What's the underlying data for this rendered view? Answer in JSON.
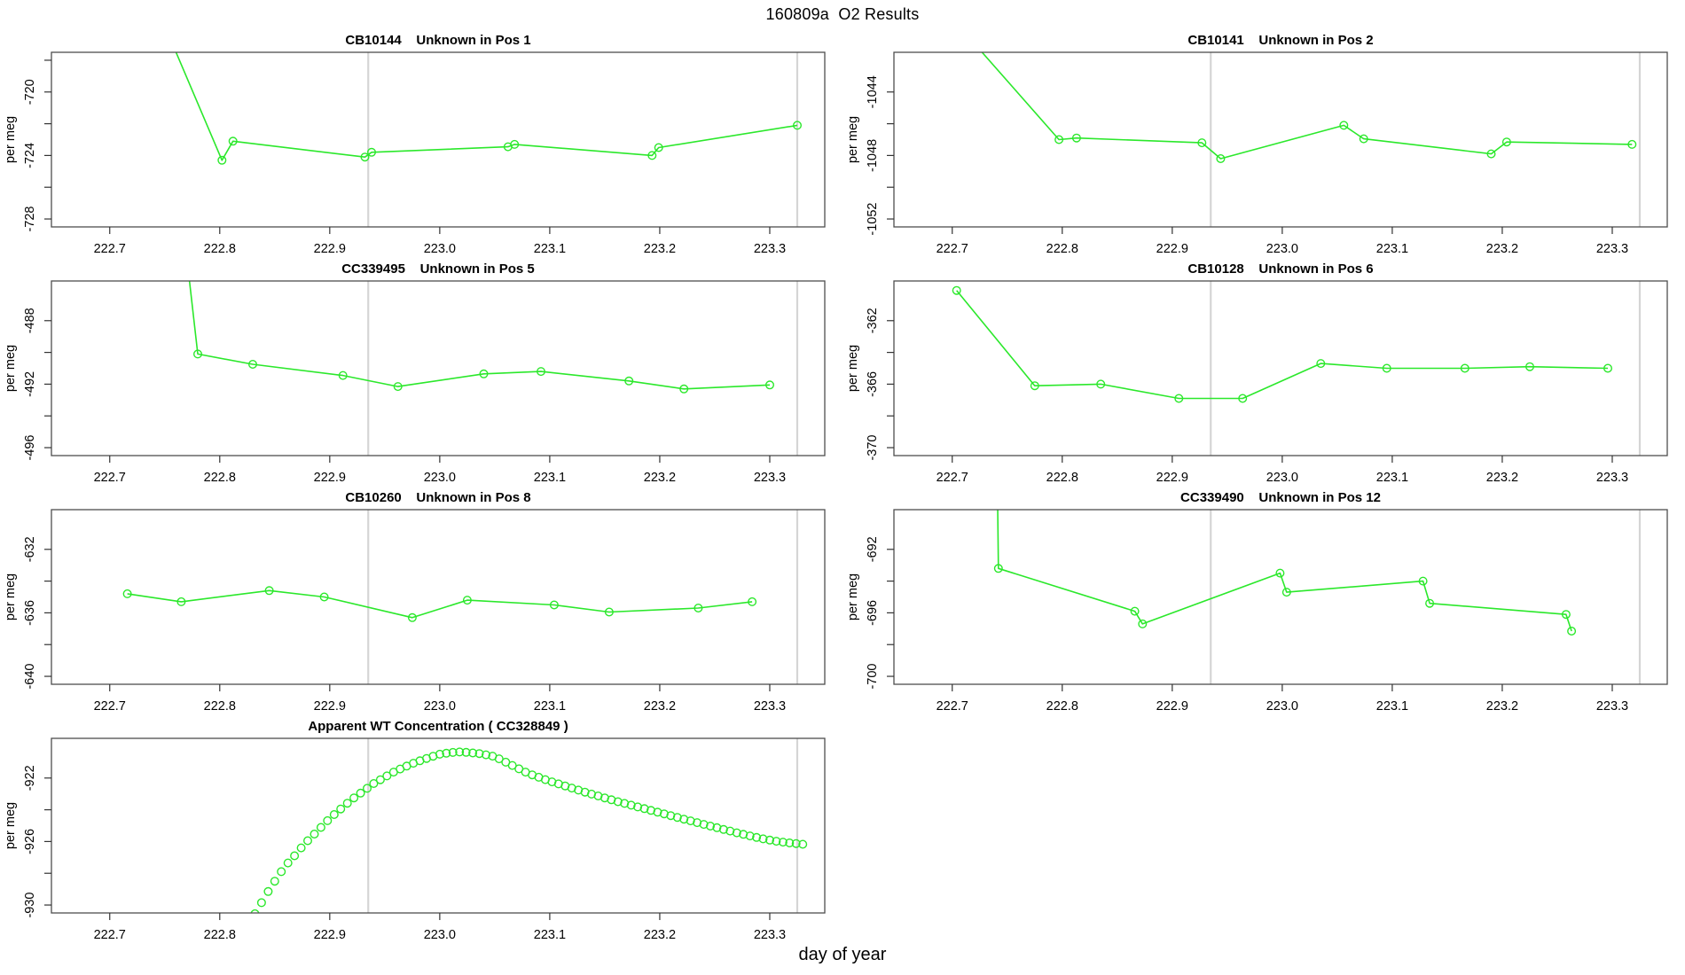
{
  "figure": {
    "title": "160809a  O2 Results",
    "xlabel": "day of year"
  },
  "colors": {
    "series_green": "#2be82b",
    "vline_gray": "#d5d5d5",
    "frame_gray": "#4d4d4d",
    "tick_black": "#333333",
    "text_black": "#000000",
    "background": "#ffffff"
  },
  "chart_data": {
    "type": "line",
    "title": "160809a  O2 Results",
    "xlabel": "day of year",
    "xlim": [
      222.647,
      223.35
    ],
    "xticks": {
      "values": [
        222.7,
        222.8,
        222.9,
        223.0,
        223.1,
        223.2,
        223.3
      ],
      "labels": [
        "222.7",
        "222.8",
        "222.9",
        "223.0",
        "223.1",
        "223.2",
        "223.3"
      ]
    },
    "vlines": [
      222.935,
      223.325
    ],
    "panels": [
      {
        "title": "CB10144    Unknown in Pos 1",
        "ylabel": "per meg",
        "type": "line",
        "grid": {
          "row": 0,
          "col": 0
        },
        "ylim": [
          -728.5,
          -717.5
        ],
        "yticks": {
          "labeled_values": [
            -720,
            -724,
            -728
          ],
          "labels": [
            "-720",
            "-724",
            "-728"
          ],
          "minor_values": [
            -718,
            -722,
            -726
          ]
        },
        "points": [
          [
            222.748,
            -715.5
          ],
          [
            222.802,
            -724.3
          ],
          [
            222.812,
            -723.1
          ],
          [
            222.932,
            -724.1
          ],
          [
            222.938,
            -723.8
          ],
          [
            223.062,
            -723.45
          ],
          [
            223.068,
            -723.3
          ],
          [
            223.193,
            -724.0
          ],
          [
            223.199,
            -723.5
          ],
          [
            223.325,
            -722.1
          ]
        ]
      },
      {
        "title": "CB10141    Unknown in Pos 2",
        "ylabel": "per meg",
        "type": "line",
        "grid": {
          "row": 0,
          "col": 1
        },
        "ylim": [
          -1052.5,
          -1041.5
        ],
        "yticks": {
          "labeled_values": [
            -1044,
            -1048,
            -1052
          ],
          "labels": [
            "-1044",
            "-1048",
            "-1052"
          ],
          "minor_values": [
            -1046,
            -1050
          ]
        },
        "points": [
          [
            222.708,
            -1040.0
          ],
          [
            222.797,
            -1047.0
          ],
          [
            222.813,
            -1046.9
          ],
          [
            222.927,
            -1047.2
          ],
          [
            222.944,
            -1048.2
          ],
          [
            223.056,
            -1046.1
          ],
          [
            223.074,
            -1046.95
          ],
          [
            223.19,
            -1047.9
          ],
          [
            223.204,
            -1047.15
          ],
          [
            223.318,
            -1047.3
          ]
        ]
      },
      {
        "title": "CC339495    Unknown in Pos 5",
        "ylabel": "per meg",
        "type": "line",
        "grid": {
          "row": 1,
          "col": 0
        },
        "ylim": [
          -496.5,
          -485.5
        ],
        "yticks": {
          "labeled_values": [
            -488,
            -492,
            -496
          ],
          "labels": [
            "-488",
            "-492",
            "-496"
          ],
          "minor_values": [
            -490,
            -494
          ]
        },
        "points": [
          [
            222.77,
            -484.0
          ],
          [
            222.78,
            -490.1
          ],
          [
            222.83,
            -490.75
          ],
          [
            222.912,
            -491.45
          ],
          [
            222.962,
            -492.15
          ],
          [
            223.04,
            -491.35
          ],
          [
            223.092,
            -491.2
          ],
          [
            223.172,
            -491.8
          ],
          [
            223.222,
            -492.3
          ],
          [
            223.3,
            -492.05
          ]
        ]
      },
      {
        "title": "CB10128    Unknown in Pos 6",
        "ylabel": "per meg",
        "type": "line",
        "grid": {
          "row": 1,
          "col": 1
        },
        "ylim": [
          -370.5,
          -359.5
        ],
        "yticks": {
          "labeled_values": [
            -362,
            -366,
            -370
          ],
          "labels": [
            "-362",
            "-366",
            "-370"
          ],
          "minor_values": [
            -364,
            -368
          ]
        },
        "points": [
          [
            222.704,
            -360.1
          ],
          [
            222.775,
            -366.1
          ],
          [
            222.835,
            -366.0
          ],
          [
            222.906,
            -366.9
          ],
          [
            222.964,
            -366.9
          ],
          [
            223.035,
            -364.7
          ],
          [
            223.095,
            -365.0
          ],
          [
            223.166,
            -365.0
          ],
          [
            223.225,
            -364.9
          ],
          [
            223.296,
            -365.0
          ]
        ]
      },
      {
        "title": "CB10260    Unknown in Pos 8",
        "ylabel": "per meg",
        "type": "line",
        "grid": {
          "row": 2,
          "col": 0
        },
        "ylim": [
          -640.5,
          -629.5
        ],
        "yticks": {
          "labeled_values": [
            -632,
            -636,
            -640
          ],
          "labels": [
            "-632",
            "-636",
            "-640"
          ],
          "minor_values": [
            -634,
            -638
          ]
        },
        "points": [
          [
            222.716,
            -634.8
          ],
          [
            222.765,
            -635.3
          ],
          [
            222.845,
            -634.6
          ],
          [
            222.895,
            -635.0
          ],
          [
            222.975,
            -636.3
          ],
          [
            223.025,
            -635.2
          ],
          [
            223.104,
            -635.5
          ],
          [
            223.154,
            -635.95
          ],
          [
            223.235,
            -635.7
          ],
          [
            223.284,
            -635.3
          ]
        ]
      },
      {
        "title": "CC339490    Unknown in Pos 12",
        "ylabel": "per meg",
        "type": "line",
        "grid": {
          "row": 2,
          "col": 1
        },
        "ylim": [
          -700.5,
          -689.5
        ],
        "yticks": {
          "labeled_values": [
            -692,
            -696,
            -700
          ],
          "labels": [
            "-692",
            "-696",
            "-700"
          ],
          "minor_values": [
            -694,
            -698
          ]
        },
        "points": [
          [
            222.741,
            -687.5
          ],
          [
            222.742,
            -693.2
          ],
          [
            222.866,
            -695.9
          ],
          [
            222.873,
            -696.7
          ],
          [
            222.998,
            -693.5
          ],
          [
            223.004,
            -694.7
          ],
          [
            223.128,
            -694.0
          ],
          [
            223.134,
            -695.4
          ],
          [
            223.258,
            -696.1
          ],
          [
            223.263,
            -697.15
          ]
        ]
      },
      {
        "title": "Apparent WT Concentration ( CC328849 )",
        "ylabel": "per meg",
        "type": "scatter",
        "grid": {
          "row": 3,
          "col": 0
        },
        "ylim": [
          -930.5,
          -919.5
        ],
        "yticks": {
          "labeled_values": [
            -922,
            -926,
            -930
          ],
          "labels": [
            "-922",
            "-926",
            "-930"
          ],
          "minor_values": [
            -924,
            -928
          ]
        },
        "points": [
          [
            222.832,
            -930.55
          ],
          [
            222.838,
            -929.85
          ],
          [
            222.844,
            -929.15
          ],
          [
            222.85,
            -928.5
          ],
          [
            222.856,
            -927.9
          ],
          [
            222.862,
            -927.35
          ],
          [
            222.868,
            -926.9
          ],
          [
            222.874,
            -926.4
          ],
          [
            222.88,
            -925.95
          ],
          [
            222.886,
            -925.53
          ],
          [
            222.892,
            -925.11
          ],
          [
            222.898,
            -924.69
          ],
          [
            222.904,
            -924.3
          ],
          [
            222.91,
            -923.95
          ],
          [
            222.916,
            -923.59
          ],
          [
            222.922,
            -923.25
          ],
          [
            222.928,
            -922.95
          ],
          [
            222.934,
            -922.65
          ],
          [
            222.94,
            -922.35
          ],
          [
            222.946,
            -922.11
          ],
          [
            222.952,
            -921.87
          ],
          [
            222.958,
            -921.63
          ],
          [
            222.964,
            -921.43
          ],
          [
            222.97,
            -921.25
          ],
          [
            222.976,
            -921.07
          ],
          [
            222.982,
            -920.91
          ],
          [
            222.988,
            -920.77
          ],
          [
            222.994,
            -920.63
          ],
          [
            223.0,
            -920.5
          ],
          [
            223.006,
            -920.44
          ],
          [
            223.012,
            -920.39
          ],
          [
            223.018,
            -920.36
          ],
          [
            223.024,
            -920.38
          ],
          [
            223.03,
            -920.42
          ],
          [
            223.036,
            -920.46
          ],
          [
            223.042,
            -920.54
          ],
          [
            223.048,
            -920.62
          ],
          [
            223.054,
            -920.79
          ],
          [
            223.06,
            -921.0
          ],
          [
            223.066,
            -921.21
          ],
          [
            223.072,
            -921.42
          ],
          [
            223.078,
            -921.63
          ],
          [
            223.084,
            -921.8
          ],
          [
            223.09,
            -921.95
          ],
          [
            223.096,
            -922.1
          ],
          [
            223.102,
            -922.24
          ],
          [
            223.108,
            -922.37
          ],
          [
            223.114,
            -922.5
          ],
          [
            223.12,
            -922.63
          ],
          [
            223.126,
            -922.76
          ],
          [
            223.132,
            -922.89
          ],
          [
            223.138,
            -923.01
          ],
          [
            223.144,
            -923.13
          ],
          [
            223.15,
            -923.25
          ],
          [
            223.156,
            -923.37
          ],
          [
            223.162,
            -923.49
          ],
          [
            223.168,
            -923.6
          ],
          [
            223.174,
            -923.71
          ],
          [
            223.18,
            -923.82
          ],
          [
            223.186,
            -923.93
          ],
          [
            223.192,
            -924.04
          ],
          [
            223.198,
            -924.15
          ],
          [
            223.204,
            -924.26
          ],
          [
            223.21,
            -924.37
          ],
          [
            223.216,
            -924.48
          ],
          [
            223.222,
            -924.59
          ],
          [
            223.228,
            -924.7
          ],
          [
            223.234,
            -924.81
          ],
          [
            223.24,
            -924.92
          ],
          [
            223.246,
            -925.03
          ],
          [
            223.252,
            -925.13
          ],
          [
            223.258,
            -925.24
          ],
          [
            223.264,
            -925.34
          ],
          [
            223.27,
            -925.45
          ],
          [
            223.276,
            -925.55
          ],
          [
            223.282,
            -925.65
          ],
          [
            223.288,
            -925.74
          ],
          [
            223.294,
            -925.83
          ],
          [
            223.3,
            -925.91
          ],
          [
            223.306,
            -925.98
          ],
          [
            223.312,
            -926.04
          ],
          [
            223.318,
            -926.09
          ],
          [
            223.324,
            -926.13
          ],
          [
            223.33,
            -926.17
          ]
        ]
      }
    ]
  }
}
